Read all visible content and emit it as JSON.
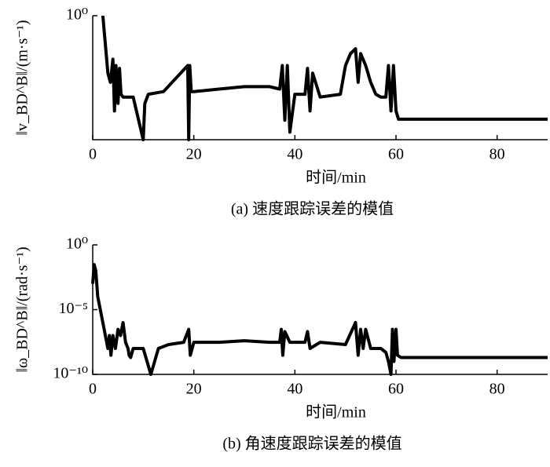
{
  "chart_data": [
    {
      "type": "line",
      "ylabel": "‖v_BD^B‖/(m·s⁻¹)",
      "xlabel": "时间/min",
      "caption": "(a) 速度跟踪误差的模值",
      "log_y": true,
      "color": "#000000",
      "xlim": [
        0,
        90
      ],
      "xticks": [
        0,
        20,
        40,
        60,
        80
      ],
      "ylim": [
        0.05,
        1
      ],
      "yticks": [
        {
          "value": 1,
          "label": "10⁰"
        }
      ],
      "x": [
        2,
        2.5,
        3,
        3.5,
        4,
        4.3,
        4.6,
        5,
        5.3,
        5.6,
        6,
        8,
        10,
        10.3,
        11,
        14,
        18.8,
        19,
        19.2,
        19.5,
        20,
        25,
        30,
        35,
        37,
        37.5,
        38,
        38.5,
        39,
        40,
        42,
        42.5,
        43,
        43.5,
        45,
        49,
        50,
        51,
        52,
        52.5,
        53,
        54,
        55,
        56,
        57,
        58,
        58.5,
        59,
        59.5,
        60,
        60.5,
        61,
        90
      ],
      "values": [
        1,
        0.5,
        0.25,
        0.2,
        0.35,
        0.1,
        0.3,
        0.12,
        0.28,
        0.15,
        0.14,
        0.14,
        0.05,
        0.12,
        0.15,
        0.16,
        0.3,
        0.05,
        0.3,
        0.16,
        0.16,
        0.17,
        0.18,
        0.18,
        0.17,
        0.3,
        0.08,
        0.3,
        0.06,
        0.15,
        0.15,
        0.28,
        0.1,
        0.25,
        0.14,
        0.15,
        0.3,
        0.4,
        0.45,
        0.2,
        0.4,
        0.3,
        0.2,
        0.15,
        0.14,
        0.14,
        0.3,
        0.1,
        0.3,
        0.1,
        0.082,
        0.082,
        0.082
      ]
    },
    {
      "type": "line",
      "ylabel": "‖ω_BD^B‖/(rad·s⁻¹)",
      "xlabel": "时间/min",
      "caption": "(b) 角速度跟踪误差的模值",
      "log_y": true,
      "color": "#000000",
      "xlim": [
        0,
        90
      ],
      "xticks": [
        0,
        20,
        40,
        60,
        80
      ],
      "ylim": [
        1e-10,
        1
      ],
      "yticks": [
        {
          "value": 1e-10,
          "label": "10⁻¹⁰"
        },
        {
          "value": 1e-05,
          "label": "10⁻⁵"
        },
        {
          "value": 1,
          "label": "10⁰"
        }
      ],
      "x": [
        0,
        0.3,
        0.6,
        1,
        2,
        3,
        3.3,
        3.6,
        4,
        4.5,
        5,
        5.5,
        6,
        6.5,
        7,
        7.2,
        7.5,
        8,
        10,
        11.5,
        13,
        15,
        18,
        19,
        19.3,
        20,
        25,
        30,
        35,
        37,
        37.3,
        37.6,
        38,
        39,
        40,
        42,
        42.5,
        43,
        45,
        50,
        52,
        52.5,
        53,
        53.5,
        54,
        55,
        57,
        58,
        58.5,
        59,
        59.3,
        59.6,
        60,
        60.3,
        61,
        90
      ],
      "values": [
        0.001,
        0.03,
        0.01,
        0.0001,
        1e-06,
        1e-08,
        1e-07,
        3e-09,
        1e-07,
        1e-08,
        3e-07,
        1e-07,
        1e-06,
        3e-08,
        1e-08,
        3e-09,
        2e-09,
        1e-08,
        1e-08,
        1e-10,
        1e-08,
        2e-08,
        3e-08,
        3e-07,
        3e-09,
        3e-08,
        3e-08,
        4e-08,
        3e-08,
        3e-08,
        3e-07,
        3e-09,
        2e-07,
        3e-08,
        3e-08,
        3e-08,
        2e-07,
        1e-08,
        3e-08,
        2e-08,
        1e-06,
        3e-09,
        3e-07,
        1e-08,
        3e-07,
        1e-08,
        1e-08,
        5e-09,
        1e-09,
        1e-10,
        3e-07,
        1e-09,
        3e-07,
        3e-09,
        2e-09,
        2e-09
      ]
    }
  ]
}
